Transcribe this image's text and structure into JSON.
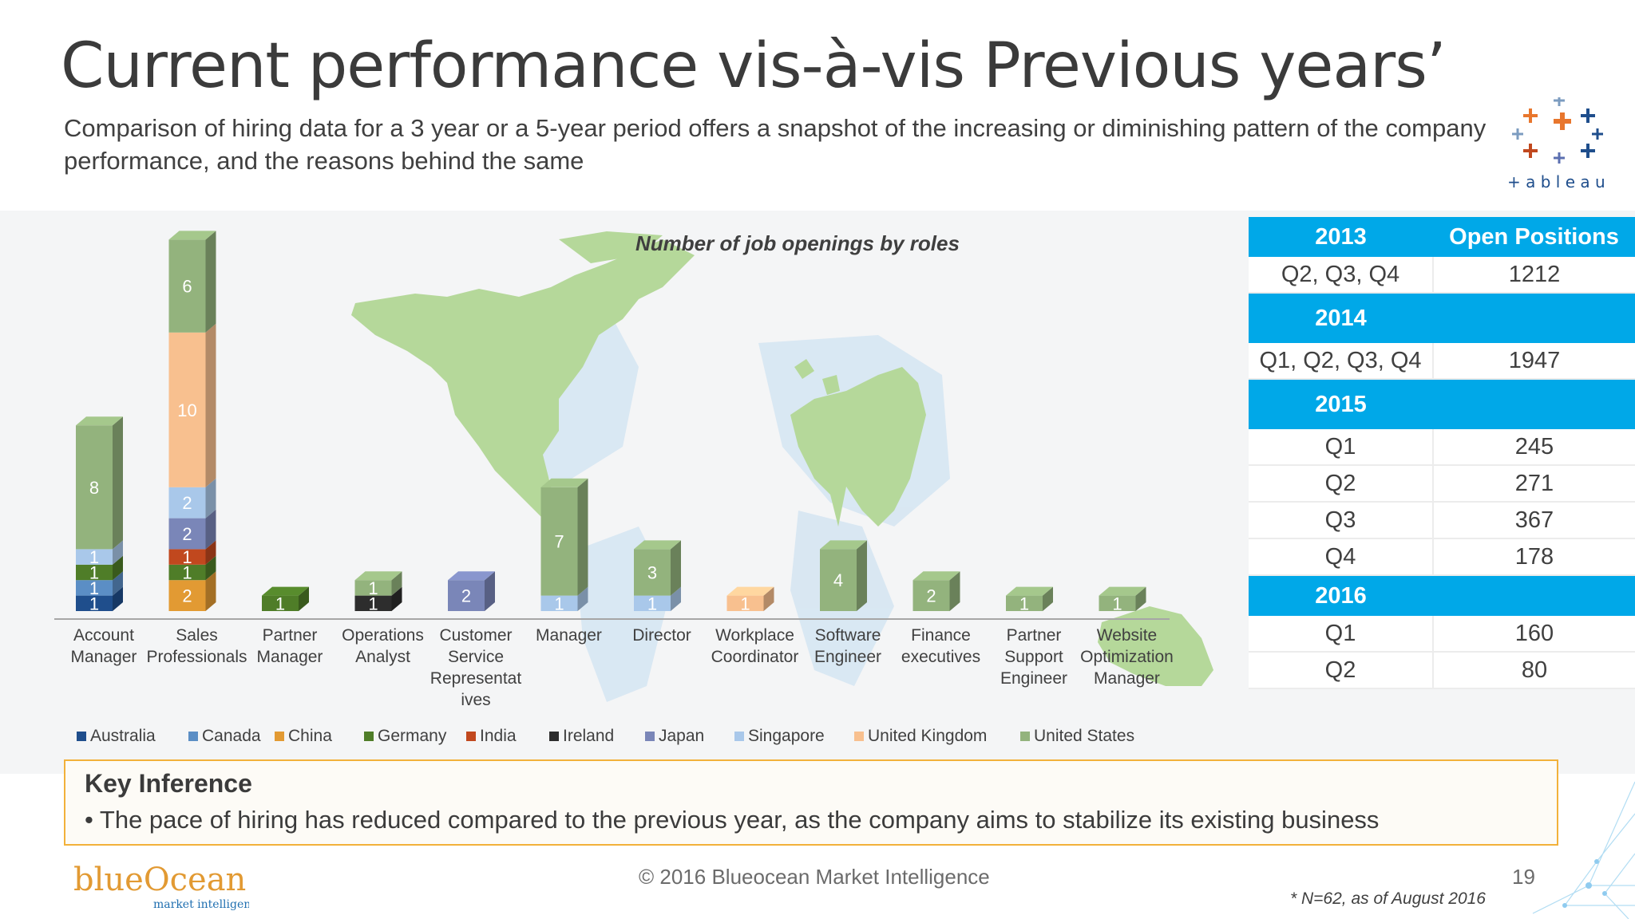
{
  "header": {
    "title": "Current performance vis-à-vis Previous years’",
    "subtitle": "Comparison of hiring data for a 3 year or a 5-year period offers a snapshot of the increasing or diminishing pattern of the company performance, and the reasons behind the same",
    "logo_text": "+ a b l e a u"
  },
  "chart_data": {
    "type": "bar",
    "stacked": true,
    "title": "Number of job openings by roles",
    "categories": [
      "Account Manager",
      "Sales Professionals",
      "Partner Manager",
      "Operations Analyst",
      "Customer Service Representatives",
      "Manager",
      "Director",
      "Workplace Coordinator",
      "Software Engineer",
      "Finance executives",
      "Partner Support Engineer",
      "Website Optimization Manager"
    ],
    "category_labels": [
      [
        "Account",
        "Manager"
      ],
      [
        "Sales",
        "Professionals"
      ],
      [
        "Partner",
        "Manager"
      ],
      [
        "Operations",
        "Analyst"
      ],
      [
        "Customer",
        "Service",
        "Representat",
        "ives"
      ],
      [
        "Manager"
      ],
      [
        "Director"
      ],
      [
        "Workplace",
        "Coordinator"
      ],
      [
        "Software",
        "Engineer"
      ],
      [
        "Finance",
        "executives"
      ],
      [
        "Partner",
        "Support",
        "Engineer"
      ],
      [
        "Website",
        "Optimization",
        "Manager"
      ]
    ],
    "series": [
      {
        "name": "Australia",
        "color": "#1f4e8c",
        "values": [
          1,
          0,
          0,
          0,
          0,
          0,
          0,
          0,
          0,
          0,
          0,
          0
        ]
      },
      {
        "name": "Canada",
        "color": "#5b8ec5",
        "values": [
          1,
          0,
          0,
          0,
          0,
          0,
          0,
          0,
          0,
          0,
          0,
          0
        ]
      },
      {
        "name": "China",
        "color": "#e29a33",
        "values": [
          0,
          2,
          0,
          0,
          0,
          0,
          0,
          0,
          0,
          0,
          0,
          0
        ]
      },
      {
        "name": "Germany",
        "color": "#4f7d28",
        "values": [
          1,
          1,
          1,
          0,
          0,
          0,
          0,
          0,
          0,
          0,
          0,
          0
        ]
      },
      {
        "name": "India",
        "color": "#c1481e",
        "values": [
          0,
          1,
          0,
          0,
          0,
          0,
          0,
          0,
          0,
          0,
          0,
          0
        ]
      },
      {
        "name": "Ireland",
        "color": "#2d2d2d",
        "values": [
          0,
          0,
          0,
          1,
          0,
          0,
          0,
          0,
          0,
          0,
          0,
          0
        ]
      },
      {
        "name": "Japan",
        "color": "#7a86b8",
        "values": [
          0,
          2,
          0,
          0,
          2,
          0,
          0,
          0,
          0,
          0,
          0,
          0
        ]
      },
      {
        "name": "Singapore",
        "color": "#a9c8ea",
        "values": [
          1,
          2,
          0,
          0,
          0,
          1,
          1,
          0,
          0,
          0,
          0,
          0
        ]
      },
      {
        "name": "United Kingdom",
        "color": "#f8c08f",
        "values": [
          0,
          10,
          0,
          0,
          0,
          0,
          0,
          1,
          0,
          0,
          0,
          0
        ]
      },
      {
        "name": "United States",
        "color": "#93b37d",
        "values": [
          8,
          6,
          0,
          1,
          0,
          7,
          3,
          0,
          4,
          2,
          1,
          1
        ]
      }
    ],
    "data_labels": true,
    "legend_position": "bottom",
    "grid": false,
    "ylim": [
      0,
      24
    ]
  },
  "summary_table": {
    "groups": [
      {
        "year": "2013",
        "header_value": "Open Positions",
        "rows": [
          {
            "period": "Q2, Q3, Q4",
            "value": "1212"
          }
        ]
      },
      {
        "year": "2014",
        "header_value": "",
        "rows": [
          {
            "period": "Q1, Q2, Q3, Q4",
            "value": "1947"
          }
        ]
      },
      {
        "year": "2015",
        "header_value": "",
        "rows": [
          {
            "period": "Q1",
            "value": "245"
          },
          {
            "period": "Q2",
            "value": "271"
          },
          {
            "period": "Q3",
            "value": "367"
          },
          {
            "period": "Q4",
            "value": "178"
          }
        ]
      },
      {
        "year": "2016",
        "header_value": "",
        "rows": [
          {
            "period": "Q1",
            "value": "160"
          },
          {
            "period": "Q2",
            "value": "80"
          }
        ]
      }
    ]
  },
  "inference": {
    "title": "Key Inference",
    "text": "• The pace of hiring has reduced compared to the previous year, as the company aims to stabilize its existing business"
  },
  "footer": {
    "brand_name": "blueOcean",
    "brand_tagline": "market intelligence",
    "copyright": "© 2016 Blueocean Market Intelligence",
    "page_number": "19",
    "footnote": "* N=62, as of August 2016"
  },
  "colors": {
    "accent_blue": "#00a8e8",
    "inference_border": "#f2b13a",
    "map_green": "#b5d89a"
  }
}
